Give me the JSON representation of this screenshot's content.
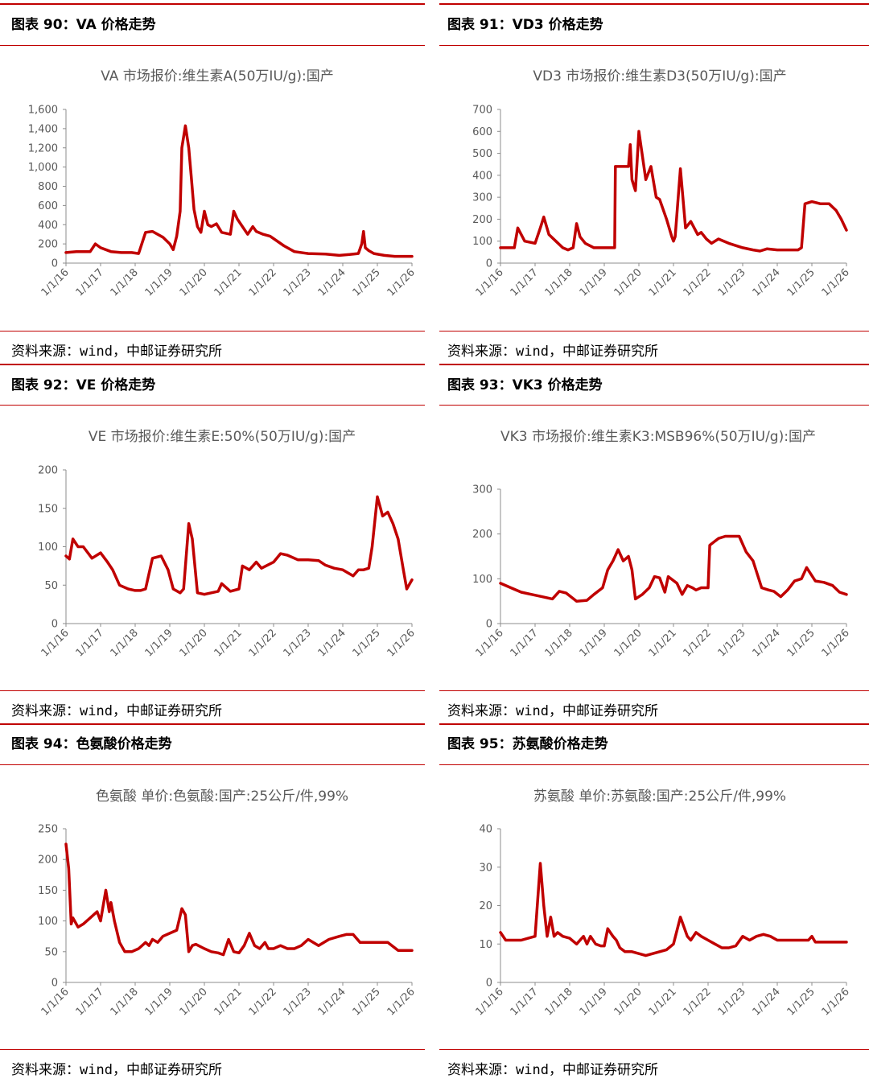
{
  "panels": [
    {
      "figure_title": "图表 90：VA 价格走势",
      "source": "资料来源：wind，中邮证券研究所",
      "chart_data": {
        "type": "line",
        "title": "VA 市场报价:维生素A(50万IU/g):国产",
        "color": "#c00000",
        "ylim": [
          0,
          1600
        ],
        "y_ticks": [
          "0",
          "200",
          "400",
          "600",
          "800",
          "1,000",
          "1,200",
          "1,400",
          "1,600"
        ],
        "x_ticks": [
          "1/1/16",
          "1/1/17",
          "1/1/18",
          "1/1/19",
          "1/1/20",
          "1/1/21",
          "1/1/22",
          "1/1/23",
          "1/1/24",
          "1/1/25",
          "1/1/26"
        ],
        "x_range": [
          2016.0,
          2026.0
        ],
        "x": [
          2016.0,
          2016.3,
          2016.7,
          2016.85,
          2017.0,
          2017.3,
          2017.6,
          2017.9,
          2018.1,
          2018.3,
          2018.5,
          2018.8,
          2019.0,
          2019.1,
          2019.2,
          2019.3,
          2019.35,
          2019.45,
          2019.55,
          2019.62,
          2019.7,
          2019.8,
          2019.9,
          2020.0,
          2020.1,
          2020.2,
          2020.35,
          2020.5,
          2020.75,
          2020.85,
          2020.95,
          2021.1,
          2021.25,
          2021.4,
          2021.5,
          2021.7,
          2021.9,
          2022.3,
          2022.6,
          2023.0,
          2023.5,
          2023.9,
          2024.2,
          2024.45,
          2024.55,
          2024.6,
          2024.65,
          2024.75,
          2024.9,
          2025.2,
          2025.5,
          2025.75,
          2026.0
        ],
        "y": [
          110,
          120,
          120,
          200,
          160,
          120,
          110,
          110,
          100,
          320,
          330,
          270,
          200,
          140,
          280,
          540,
          1200,
          1430,
          1200,
          900,
          560,
          380,
          320,
          540,
          400,
          380,
          410,
          320,
          300,
          540,
          460,
          380,
          300,
          380,
          330,
          300,
          280,
          180,
          120,
          100,
          95,
          80,
          90,
          100,
          200,
          330,
          160,
          130,
          100,
          80,
          70,
          70,
          70
        ]
      }
    },
    {
      "figure_title": "图表 91：VD3 价格走势",
      "source": "资料来源：wind，中邮证券研究所",
      "chart_data": {
        "type": "line",
        "title": "VD3 市场报价:维生素D3(50万IU/g):国产",
        "color": "#c00000",
        "ylim": [
          0,
          700
        ],
        "y_ticks": [
          "0",
          "100",
          "200",
          "300",
          "400",
          "500",
          "600",
          "700"
        ],
        "x_ticks": [
          "1/1/16",
          "1/1/17",
          "1/1/18",
          "1/1/19",
          "1/1/20",
          "1/1/21",
          "1/1/22",
          "1/1/23",
          "1/1/24",
          "1/1/25",
          "1/1/26"
        ],
        "x_range": [
          2016.0,
          2026.0
        ],
        "x": [
          2016.0,
          2016.4,
          2016.5,
          2016.7,
          2017.0,
          2017.15,
          2017.25,
          2017.4,
          2017.6,
          2017.8,
          2017.95,
          2018.1,
          2018.2,
          2018.3,
          2018.45,
          2018.7,
          2018.75,
          2019.0,
          2019.3,
          2019.32,
          2019.7,
          2019.75,
          2019.8,
          2019.9,
          2020.0,
          2020.2,
          2020.35,
          2020.5,
          2020.6,
          2020.8,
          2020.95,
          2021.0,
          2021.05,
          2021.2,
          2021.35,
          2021.5,
          2021.7,
          2021.8,
          2021.95,
          2022.1,
          2022.3,
          2022.6,
          2022.8,
          2023.0,
          2023.3,
          2023.5,
          2023.7,
          2024.0,
          2024.5,
          2024.6,
          2024.7,
          2024.8,
          2025.0,
          2025.25,
          2025.5,
          2025.7,
          2025.85,
          2026.0
        ],
        "y": [
          70,
          70,
          160,
          100,
          90,
          160,
          210,
          130,
          100,
          70,
          60,
          70,
          180,
          120,
          90,
          70,
          70,
          70,
          70,
          440,
          440,
          540,
          380,
          330,
          600,
          380,
          440,
          300,
          290,
          200,
          120,
          100,
          120,
          430,
          160,
          190,
          130,
          140,
          110,
          90,
          110,
          90,
          80,
          70,
          60,
          55,
          65,
          60,
          60,
          60,
          70,
          270,
          280,
          270,
          270,
          240,
          200,
          150
        ]
      }
    },
    {
      "figure_title": "图表 92：VE 价格走势",
      "source": "资料来源：wind，中邮证券研究所",
      "chart_data": {
        "type": "line",
        "title": "VE 市场报价:维生素E:50%(50万IU/g):国产",
        "color": "#c00000",
        "ylim": [
          0,
          200
        ],
        "y_ticks": [
          "0",
          "50",
          "100",
          "150",
          "200"
        ],
        "x_ticks": [
          "1/1/16",
          "1/1/17",
          "1/1/18",
          "1/1/19",
          "1/1/20",
          "1/1/21",
          "1/1/22",
          "1/1/23",
          "1/1/24",
          "1/1/25",
          "1/1/26"
        ],
        "x_range": [
          2016.0,
          2026.0
        ],
        "x": [
          2016.0,
          2016.1,
          2016.2,
          2016.35,
          2016.5,
          2016.75,
          2017.0,
          2017.2,
          2017.35,
          2017.55,
          2017.8,
          2018.0,
          2018.15,
          2018.3,
          2018.5,
          2018.75,
          2018.95,
          2019.1,
          2019.3,
          2019.4,
          2019.55,
          2019.65,
          2019.8,
          2020.0,
          2020.2,
          2020.4,
          2020.5,
          2020.75,
          2021.0,
          2021.1,
          2021.3,
          2021.5,
          2021.65,
          2022.0,
          2022.2,
          2022.4,
          2022.7,
          2023.0,
          2023.3,
          2023.5,
          2023.75,
          2024.0,
          2024.3,
          2024.45,
          2024.6,
          2024.75,
          2024.85,
          2025.0,
          2025.15,
          2025.3,
          2025.45,
          2025.6,
          2025.75,
          2025.85,
          2026.0
        ],
        "y": [
          88,
          84,
          110,
          100,
          100,
          85,
          92,
          80,
          70,
          50,
          45,
          43,
          43,
          45,
          85,
          88,
          70,
          45,
          40,
          45,
          130,
          110,
          40,
          38,
          40,
          42,
          52,
          42,
          45,
          75,
          70,
          80,
          72,
          80,
          91,
          89,
          83,
          83,
          82,
          76,
          72,
          70,
          62,
          70,
          70,
          72,
          100,
          165,
          140,
          145,
          130,
          110,
          70,
          45,
          57
        ]
      }
    },
    {
      "figure_title": "图表 93：VK3 价格走势",
      "source": "资料来源：wind，中邮证券研究所",
      "chart_data": {
        "type": "line",
        "title": "VK3 市场报价:维生素K3:MSB96%(50万IU/g):国产",
        "color": "#c00000",
        "ylim": [
          0,
          300
        ],
        "y_ticks": [
          "0",
          "100",
          "200",
          "300"
        ],
        "x_ticks": [
          "1/1/16",
          "1/1/17",
          "1/1/18",
          "1/1/19",
          "1/1/20",
          "1/1/21",
          "1/1/22",
          "1/1/23",
          "1/1/24",
          "1/1/25",
          "1/1/26"
        ],
        "x_range": [
          2016.0,
          2026.0
        ],
        "x": [
          2016.0,
          2016.3,
          2016.6,
          2016.9,
          2017.2,
          2017.5,
          2017.7,
          2017.9,
          2018.2,
          2018.5,
          2018.7,
          2018.95,
          2019.1,
          2019.25,
          2019.4,
          2019.55,
          2019.7,
          2019.8,
          2019.9,
          2020.1,
          2020.3,
          2020.45,
          2020.6,
          2020.75,
          2020.85,
          2021.1,
          2021.25,
          2021.4,
          2021.55,
          2021.65,
          2021.8,
          2022.0,
          2022.05,
          2022.3,
          2022.5,
          2022.7,
          2022.9,
          2023.1,
          2023.3,
          2023.55,
          2023.75,
          2023.9,
          2024.1,
          2024.3,
          2024.5,
          2024.7,
          2024.85,
          2025.1,
          2025.35,
          2025.6,
          2025.8,
          2026.0
        ],
        "y": [
          90,
          80,
          70,
          65,
          60,
          55,
          72,
          68,
          50,
          52,
          65,
          80,
          120,
          140,
          165,
          140,
          150,
          120,
          55,
          65,
          80,
          105,
          102,
          70,
          105,
          90,
          65,
          85,
          80,
          75,
          80,
          80,
          175,
          190,
          195,
          195,
          195,
          160,
          140,
          80,
          75,
          72,
          60,
          75,
          95,
          100,
          125,
          95,
          92,
          85,
          70,
          65
        ]
      }
    },
    {
      "figure_title": "图表 94：色氨酸价格走势",
      "source": "资料来源：wind，中邮证券研究所",
      "chart_data": {
        "type": "line",
        "title": "色氨酸 单价:色氨酸:国产:25公斤/件,99%",
        "color": "#c00000",
        "ylim": [
          0,
          250
        ],
        "y_ticks": [
          "0",
          "50",
          "100",
          "150",
          "200",
          "250"
        ],
        "x_ticks": [
          "1/1/16",
          "1/1/17",
          "1/1/18",
          "1/1/19",
          "1/1/20",
          "1/1/21",
          "1/1/22",
          "1/1/23",
          "1/1/24",
          "1/1/25",
          "1/1/26"
        ],
        "x_range": [
          2016.0,
          2026.0
        ],
        "x": [
          2016.0,
          2016.08,
          2016.15,
          2016.2,
          2016.35,
          2016.5,
          2016.7,
          2016.9,
          2017.0,
          2017.15,
          2017.25,
          2017.3,
          2017.4,
          2017.55,
          2017.7,
          2017.9,
          2018.1,
          2018.3,
          2018.4,
          2018.5,
          2018.65,
          2018.8,
          2019.0,
          2019.2,
          2019.35,
          2019.45,
          2019.55,
          2019.65,
          2019.75,
          2020.0,
          2020.2,
          2020.4,
          2020.55,
          2020.7,
          2020.85,
          2021.0,
          2021.15,
          2021.3,
          2021.45,
          2021.6,
          2021.75,
          2021.85,
          2022.0,
          2022.2,
          2022.4,
          2022.6,
          2022.8,
          2023.0,
          2023.3,
          2023.6,
          2023.9,
          2024.1,
          2024.3,
          2024.5,
          2024.7,
          2025.0,
          2025.3,
          2025.6,
          2026.0
        ],
        "y": [
          225,
          185,
          95,
          105,
          90,
          95,
          105,
          115,
          100,
          150,
          115,
          130,
          100,
          65,
          50,
          50,
          55,
          65,
          60,
          70,
          65,
          75,
          80,
          85,
          120,
          110,
          50,
          60,
          62,
          55,
          50,
          48,
          45,
          70,
          50,
          48,
          60,
          80,
          60,
          55,
          65,
          55,
          55,
          60,
          55,
          55,
          60,
          70,
          60,
          70,
          75,
          78,
          78,
          65,
          65,
          65,
          65,
          52,
          52
        ]
      }
    },
    {
      "figure_title": "图表 95：苏氨酸价格走势",
      "source": "资料来源：wind，中邮证券研究所",
      "chart_data": {
        "type": "line",
        "title": "苏氨酸 单价:苏氨酸:国产:25公斤/件,99%",
        "color": "#c00000",
        "ylim": [
          0,
          40
        ],
        "y_ticks": [
          "0",
          "10",
          "20",
          "30",
          "40"
        ],
        "x_ticks": [
          "1/1/16",
          "1/1/17",
          "1/1/18",
          "1/1/19",
          "1/1/20",
          "1/1/21",
          "1/1/22",
          "1/1/23",
          "1/1/24",
          "1/1/25",
          "1/1/26"
        ],
        "x_range": [
          2016.0,
          2026.0
        ],
        "x": [
          2016.0,
          2016.15,
          2016.3,
          2016.6,
          2016.8,
          2017.0,
          2017.15,
          2017.25,
          2017.35,
          2017.45,
          2017.55,
          2017.65,
          2017.8,
          2018.0,
          2018.2,
          2018.4,
          2018.5,
          2018.6,
          2018.75,
          2018.9,
          2019.0,
          2019.1,
          2019.25,
          2019.35,
          2019.45,
          2019.6,
          2019.8,
          2020.0,
          2020.2,
          2020.4,
          2020.6,
          2020.8,
          2021.0,
          2021.2,
          2021.4,
          2021.5,
          2021.65,
          2021.8,
          2022.0,
          2022.2,
          2022.4,
          2022.6,
          2022.8,
          2023.0,
          2023.2,
          2023.4,
          2023.6,
          2023.8,
          2024.0,
          2024.3,
          2024.6,
          2024.9,
          2025.0,
          2025.1,
          2025.3,
          2025.6,
          2026.0
        ],
        "y": [
          13,
          11,
          11,
          11,
          11.5,
          12,
          31,
          20,
          12,
          17,
          12,
          13,
          12,
          11.5,
          10,
          12,
          10,
          12,
          10,
          9.5,
          9.5,
          14,
          12,
          11,
          9,
          8,
          8,
          7.5,
          7,
          7.5,
          8,
          8.5,
          10,
          17,
          12,
          11,
          13,
          12,
          11,
          10,
          9,
          9,
          9.5,
          12,
          11,
          12,
          12.5,
          12,
          11,
          11,
          11,
          11,
          12,
          10.5,
          10.5,
          10.5,
          10.5
        ]
      }
    }
  ]
}
